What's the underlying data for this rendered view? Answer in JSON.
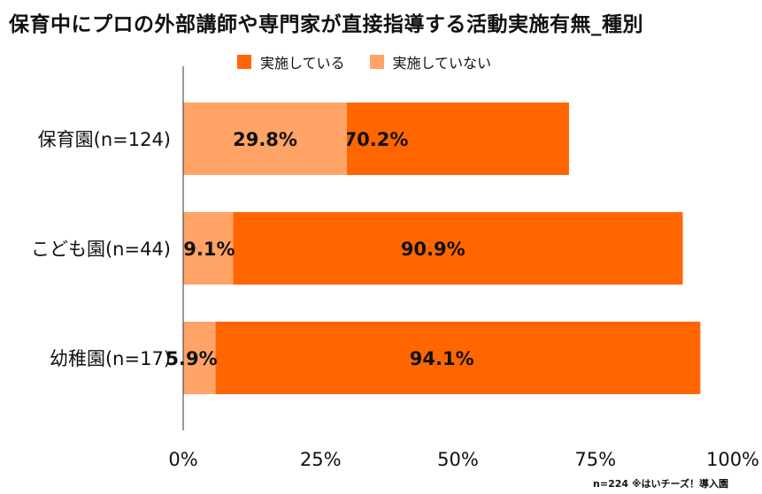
{
  "chart_data": {
    "type": "bar",
    "orientation": "horizontal",
    "stacked": true,
    "title": "保育中にプロの外部講師や専門家が直接指導する活動実施有無_種別",
    "categories": [
      "保育園(n=124)",
      "こども園(n=44)",
      "幼稚園(n=17)"
    ],
    "series": [
      {
        "name": "実施している",
        "color": "#ff6600",
        "values": [
          70.2,
          90.9,
          94.1
        ]
      },
      {
        "name": "実施していない",
        "color": "#ffa366",
        "values": [
          29.8,
          9.1,
          5.9
        ]
      }
    ],
    "data_labels": [
      [
        "70.2%",
        "29.8%"
      ],
      [
        "90.9%",
        "9.1%"
      ],
      [
        "94.1%",
        "5.9%"
      ]
    ],
    "xlim": [
      0,
      100
    ],
    "xticks": [
      0,
      25,
      50,
      75,
      100
    ],
    "xtick_labels": [
      "0%",
      "25%",
      "50%",
      "75%",
      "100%"
    ],
    "legend_position": "top",
    "grid": false
  },
  "footnote": "n=224 ※はいチーズ！導入園"
}
